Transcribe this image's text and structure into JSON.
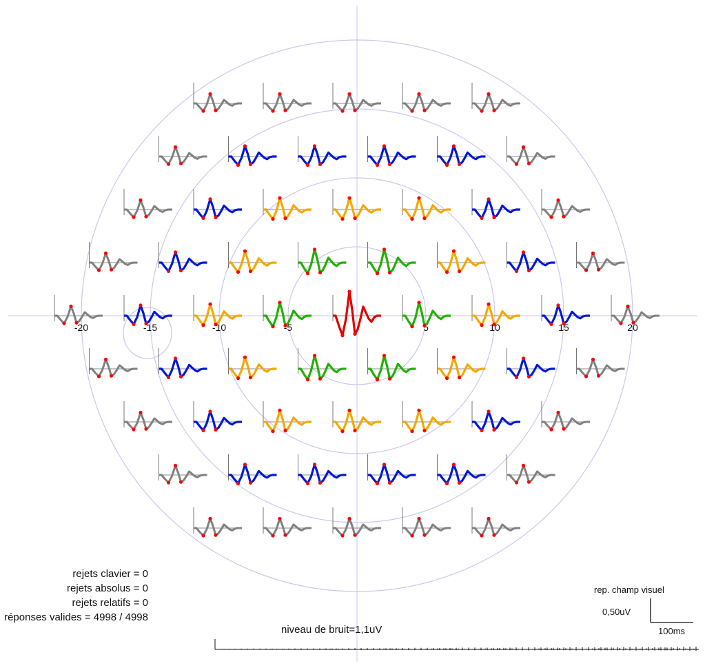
{
  "chart_data": {
    "type": "multifocal-erg",
    "x_tick_labels": [
      "-20",
      "-15",
      "-10",
      "-5",
      "5",
      "10",
      "15",
      "20"
    ],
    "x_tick_values": [
      -20,
      -15,
      -10,
      -5,
      5,
      10,
      15,
      20
    ],
    "ring_eccentricities_deg": [
      5,
      10,
      15,
      20
    ],
    "ring_colors": {
      "center": "#e00000",
      "ring1": "#22b000",
      "ring2": "#f5a800",
      "ring3": "#0018d8",
      "ring4": "#808080"
    },
    "marker_color": "#ff0000",
    "axis_color": "#c8c8f0",
    "hexagon_count": 61,
    "ring_counts": [
      1,
      6,
      12,
      18,
      24
    ]
  },
  "stats": {
    "rejets_clavier": "rejets clavier = 0",
    "rejets_absolus": "rejets absolus = 0",
    "rejets_relatifs": "rejets relatifs = 0",
    "reponses_valides": "réponses valides = 4998 / 4998"
  },
  "noise_level": "niveau de bruit=1,1uV",
  "scale": {
    "title": "rep. champ visuel",
    "amplitude": "0,50uV",
    "time": "100ms"
  }
}
